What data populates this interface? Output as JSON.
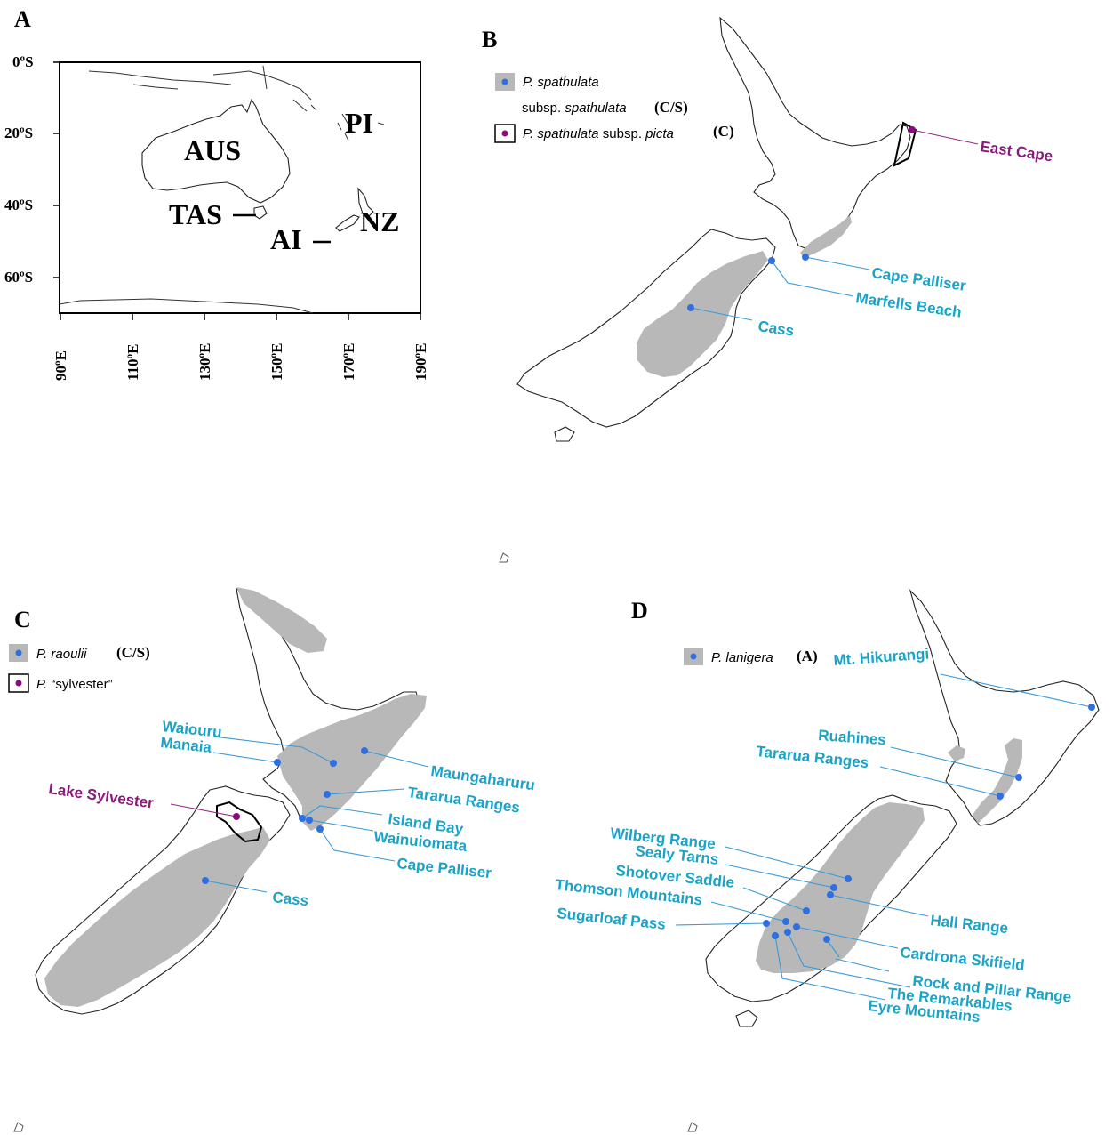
{
  "panels": {
    "a": {
      "letter": "A",
      "lat_labels": [
        "0ºS",
        "20ºS",
        "40ºS",
        "60ºS"
      ],
      "lon_labels": [
        "90ºE",
        "110ºE",
        "130ºE",
        "150ºE",
        "170ºE",
        "190ºE"
      ],
      "regions": {
        "aus": "AUS",
        "pi": "PI",
        "tas": "TAS",
        "ai": "AI",
        "nz": "NZ"
      }
    },
    "b": {
      "letter": "B",
      "legend": {
        "item1_species": "P. spathulata",
        "item1_line2_prefix": "subsp. ",
        "item1_line2_italic": "spathulata",
        "item1_code": "(C/S)",
        "item2_species": "P. spathulata",
        "item2_mid": " subsp. ",
        "item2_italic": "picta",
        "item2_code": "(C)"
      },
      "places": {
        "east_cape": "East Cape",
        "cape_palliser": "Cape Palliser",
        "marfells_beach": "Marfells Beach",
        "cass": "Cass"
      }
    },
    "c": {
      "letter": "C",
      "legend": {
        "item1_species": "P. raoulii",
        "item1_code": "(C/S)",
        "item2_prefix": "P. ",
        "item2_name": "“sylvester”"
      },
      "places": {
        "waiouru": "Waiouru",
        "manaia": "Manaia",
        "maungaharuru": "Maungaharuru",
        "lake_sylvester": "Lake Sylvester",
        "tararua_ranges": "Tararua Ranges",
        "island_bay": "Island Bay",
        "wainuiomata": "Wainuiomata",
        "cape_palliser": "Cape Palliser",
        "cass": "Cass"
      }
    },
    "d": {
      "letter": "D",
      "legend": {
        "item1_species": "P. lanigera",
        "item1_code": "(A)"
      },
      "places": {
        "mt_hikurangi": "Mt. Hikurangi",
        "ruahines": "Ruahines",
        "tararua_ranges": "Tararua Ranges",
        "wilberg_range": "Wilberg Range",
        "sealy_tarns": "Sealy Tarns",
        "shotover_saddle": "Shotover Saddle",
        "thomson_mountains": "Thomson Mountains",
        "hall_range": "Hall Range",
        "sugarloaf_pass": "Sugarloaf Pass",
        "cardrona_skifield": "Cardrona Skifield",
        "rock_and_pillar_range": "Rock and Pillar Range",
        "the_remarkables": "The Remarkables",
        "eyre_mountains": "Eyre Mountains"
      }
    }
  },
  "colors": {
    "range_fill": "#b8b8b8",
    "place_label": "#1aa3c8",
    "purple_label": "#8a1a7a",
    "dot_blue": "#2f6fe0",
    "dot_purple": "#8a0a80"
  }
}
